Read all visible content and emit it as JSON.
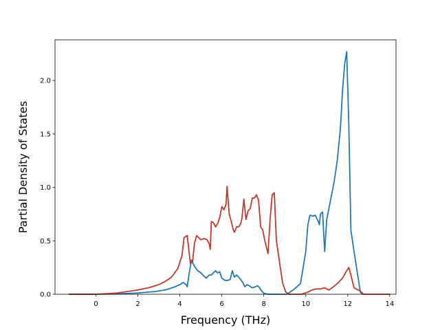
{
  "chart_data": {
    "type": "line",
    "title": "",
    "xlabel": "Frequency (THz)",
    "ylabel": "Partial Density of States",
    "xlim": [
      -1.95,
      14.3
    ],
    "ylim": [
      0.0,
      2.38
    ],
    "xticks": [
      0,
      2,
      4,
      6,
      8,
      10,
      12,
      14
    ],
    "xtick_labels": [
      "0",
      "2",
      "4",
      "6",
      "8",
      "10",
      "12",
      "14"
    ],
    "yticks": [
      0.0,
      0.5,
      1.0,
      1.5,
      2.0
    ],
    "ytick_labels": [
      "0.0",
      "0.5",
      "1.0",
      "1.5",
      "2.0"
    ],
    "grid": false,
    "legend": "none",
    "series": [
      {
        "color": "#1f77b4",
        "points": [
          [
            -1.3,
            0.0
          ],
          [
            0,
            0.0
          ],
          [
            1,
            0.003
          ],
          [
            2,
            0.012
          ],
          [
            2.8,
            0.025
          ],
          [
            3.3,
            0.04
          ],
          [
            3.7,
            0.065
          ],
          [
            4.0,
            0.09
          ],
          [
            4.15,
            0.11
          ],
          [
            4.3,
            0.09
          ],
          [
            4.35,
            0.07
          ],
          [
            4.45,
            0.2
          ],
          [
            4.55,
            0.32
          ],
          [
            4.7,
            0.26
          ],
          [
            4.85,
            0.22
          ],
          [
            5.0,
            0.2
          ],
          [
            5.15,
            0.17
          ],
          [
            5.25,
            0.15
          ],
          [
            5.4,
            0.18
          ],
          [
            5.5,
            0.18
          ],
          [
            5.6,
            0.2
          ],
          [
            5.7,
            0.22
          ],
          [
            5.8,
            0.2
          ],
          [
            5.9,
            0.21
          ],
          [
            6.0,
            0.15
          ],
          [
            6.15,
            0.13
          ],
          [
            6.3,
            0.13
          ],
          [
            6.4,
            0.14
          ],
          [
            6.5,
            0.22
          ],
          [
            6.6,
            0.16
          ],
          [
            6.7,
            0.18
          ],
          [
            6.85,
            0.15
          ],
          [
            7.0,
            0.11
          ],
          [
            7.1,
            0.07
          ],
          [
            7.2,
            0.09
          ],
          [
            7.3,
            0.08
          ],
          [
            7.45,
            0.06
          ],
          [
            7.6,
            0.07
          ],
          [
            7.7,
            0.08
          ],
          [
            7.8,
            0.06
          ],
          [
            7.9,
            0.03
          ],
          [
            8.0,
            0.01
          ],
          [
            8.2,
            0.0
          ],
          [
            9.1,
            0.0
          ],
          [
            9.4,
            0.04
          ],
          [
            9.75,
            0.1
          ],
          [
            10.0,
            0.4
          ],
          [
            10.1,
            0.65
          ],
          [
            10.2,
            0.74
          ],
          [
            10.35,
            0.73
          ],
          [
            10.45,
            0.74
          ],
          [
            10.6,
            0.68
          ],
          [
            10.65,
            0.65
          ],
          [
            10.7,
            0.75
          ],
          [
            10.8,
            0.77
          ],
          [
            10.9,
            0.4
          ],
          [
            11.0,
            0.7
          ],
          [
            11.1,
            0.8
          ],
          [
            11.2,
            0.9
          ],
          [
            11.35,
            1.05
          ],
          [
            11.5,
            1.25
          ],
          [
            11.65,
            1.55
          ],
          [
            11.75,
            1.9
          ],
          [
            11.85,
            2.15
          ],
          [
            11.95,
            2.27
          ],
          [
            12.05,
            1.6
          ],
          [
            12.15,
            0.6
          ],
          [
            12.3,
            0.4
          ],
          [
            12.5,
            0.15
          ],
          [
            12.6,
            0.02
          ],
          [
            12.7,
            0.0
          ]
        ]
      },
      {
        "color": "#c0392b",
        "points": [
          [
            -1.3,
            0.0
          ],
          [
            0,
            0.0
          ],
          [
            0.5,
            0.005
          ],
          [
            1,
            0.012
          ],
          [
            1.5,
            0.025
          ],
          [
            2,
            0.04
          ],
          [
            2.5,
            0.06
          ],
          [
            3,
            0.09
          ],
          [
            3.3,
            0.12
          ],
          [
            3.6,
            0.16
          ],
          [
            3.9,
            0.24
          ],
          [
            4.1,
            0.36
          ],
          [
            4.2,
            0.53
          ],
          [
            4.35,
            0.55
          ],
          [
            4.5,
            0.29
          ],
          [
            4.6,
            0.3
          ],
          [
            4.7,
            0.48
          ],
          [
            4.8,
            0.55
          ],
          [
            4.9,
            0.53
          ],
          [
            5.0,
            0.51
          ],
          [
            5.15,
            0.52
          ],
          [
            5.3,
            0.51
          ],
          [
            5.4,
            0.47
          ],
          [
            5.45,
            0.42
          ],
          [
            5.5,
            0.68
          ],
          [
            5.6,
            0.67
          ],
          [
            5.7,
            0.63
          ],
          [
            5.8,
            0.66
          ],
          [
            5.9,
            0.72
          ],
          [
            6.0,
            0.82
          ],
          [
            6.1,
            0.79
          ],
          [
            6.2,
            0.84
          ],
          [
            6.25,
            1.01
          ],
          [
            6.35,
            0.75
          ],
          [
            6.45,
            0.68
          ],
          [
            6.55,
            0.6
          ],
          [
            6.6,
            0.58
          ],
          [
            6.7,
            0.63
          ],
          [
            6.8,
            0.63
          ],
          [
            6.9,
            0.66
          ],
          [
            6.95,
            0.7
          ],
          [
            7.05,
            0.89
          ],
          [
            7.15,
            0.7
          ],
          [
            7.25,
            0.78
          ],
          [
            7.35,
            0.8
          ],
          [
            7.45,
            0.9
          ],
          [
            7.55,
            0.9
          ],
          [
            7.65,
            0.93
          ],
          [
            7.75,
            0.88
          ],
          [
            7.85,
            0.63
          ],
          [
            7.95,
            0.6
          ],
          [
            8.05,
            0.5
          ],
          [
            8.2,
            0.38
          ],
          [
            8.3,
            0.7
          ],
          [
            8.4,
            0.93
          ],
          [
            8.5,
            0.95
          ],
          [
            8.6,
            0.5
          ],
          [
            8.75,
            0.3
          ],
          [
            8.9,
            0.1
          ],
          [
            9.05,
            0.02
          ],
          [
            9.2,
            0.0
          ],
          [
            9.8,
            0.0
          ],
          [
            10.1,
            0.02
          ],
          [
            10.3,
            0.04
          ],
          [
            10.5,
            0.05
          ],
          [
            10.7,
            0.05
          ],
          [
            10.9,
            0.06
          ],
          [
            11.0,
            0.05
          ],
          [
            11.1,
            0.04
          ],
          [
            11.25,
            0.06
          ],
          [
            11.5,
            0.1
          ],
          [
            11.75,
            0.15
          ],
          [
            11.95,
            0.22
          ],
          [
            12.05,
            0.25
          ],
          [
            12.15,
            0.18
          ],
          [
            12.3,
            0.06
          ],
          [
            12.6,
            0.03
          ],
          [
            12.75,
            0.0
          ],
          [
            14.0,
            0.0
          ]
        ]
      }
    ]
  }
}
